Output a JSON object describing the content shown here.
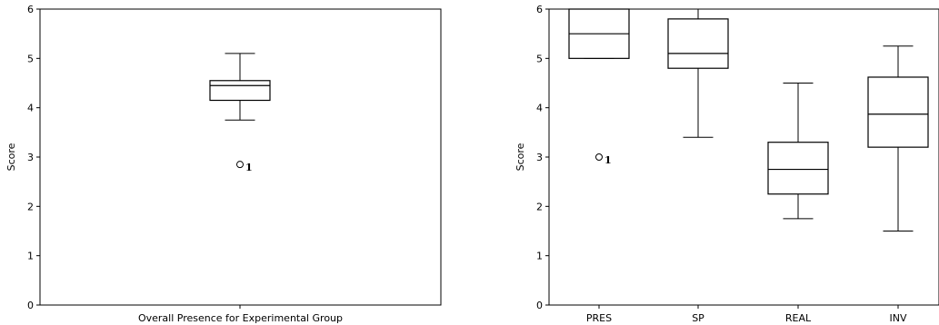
{
  "chart_data": [
    {
      "type": "box",
      "title": "",
      "xlabel": "Overall Presence for Experimental Group",
      "ylabel": "Score",
      "ylim": [
        0,
        6
      ],
      "yticks": [
        "0",
        "1",
        "2",
        "3",
        "4",
        "5",
        "6"
      ],
      "grid": false,
      "categories": [
        ""
      ],
      "boxes": [
        {
          "whisker_low": 3.75,
          "q1": 4.15,
          "median": 4.45,
          "q3": 4.55,
          "whisker_high": 5.1,
          "outliers": [
            {
              "value": 2.85,
              "label": "1"
            }
          ]
        }
      ]
    },
    {
      "type": "box",
      "title": "",
      "xlabel": "",
      "ylabel": "Score",
      "ylim": [
        0,
        6
      ],
      "yticks": [
        "0",
        "1",
        "2",
        "3",
        "4",
        "5",
        "6"
      ],
      "grid": false,
      "categories": [
        "PRES",
        "SP",
        "REAL",
        "INV"
      ],
      "boxes": [
        {
          "whisker_low": 5.0,
          "q1": 5.0,
          "median": 5.5,
          "q3": 6.0,
          "whisker_high": 6.0,
          "outliers": [
            {
              "value": 3.0,
              "label": "1"
            }
          ]
        },
        {
          "whisker_low": 3.4,
          "q1": 4.8,
          "median": 5.1,
          "q3": 5.8,
          "whisker_high": 6.0,
          "outliers": []
        },
        {
          "whisker_low": 1.75,
          "q1": 2.25,
          "median": 2.75,
          "q3": 3.3,
          "whisker_high": 4.5,
          "outliers": []
        },
        {
          "whisker_low": 1.5,
          "q1": 3.2,
          "median": 3.87,
          "q3": 4.62,
          "whisker_high": 5.25,
          "outliers": []
        }
      ]
    }
  ]
}
